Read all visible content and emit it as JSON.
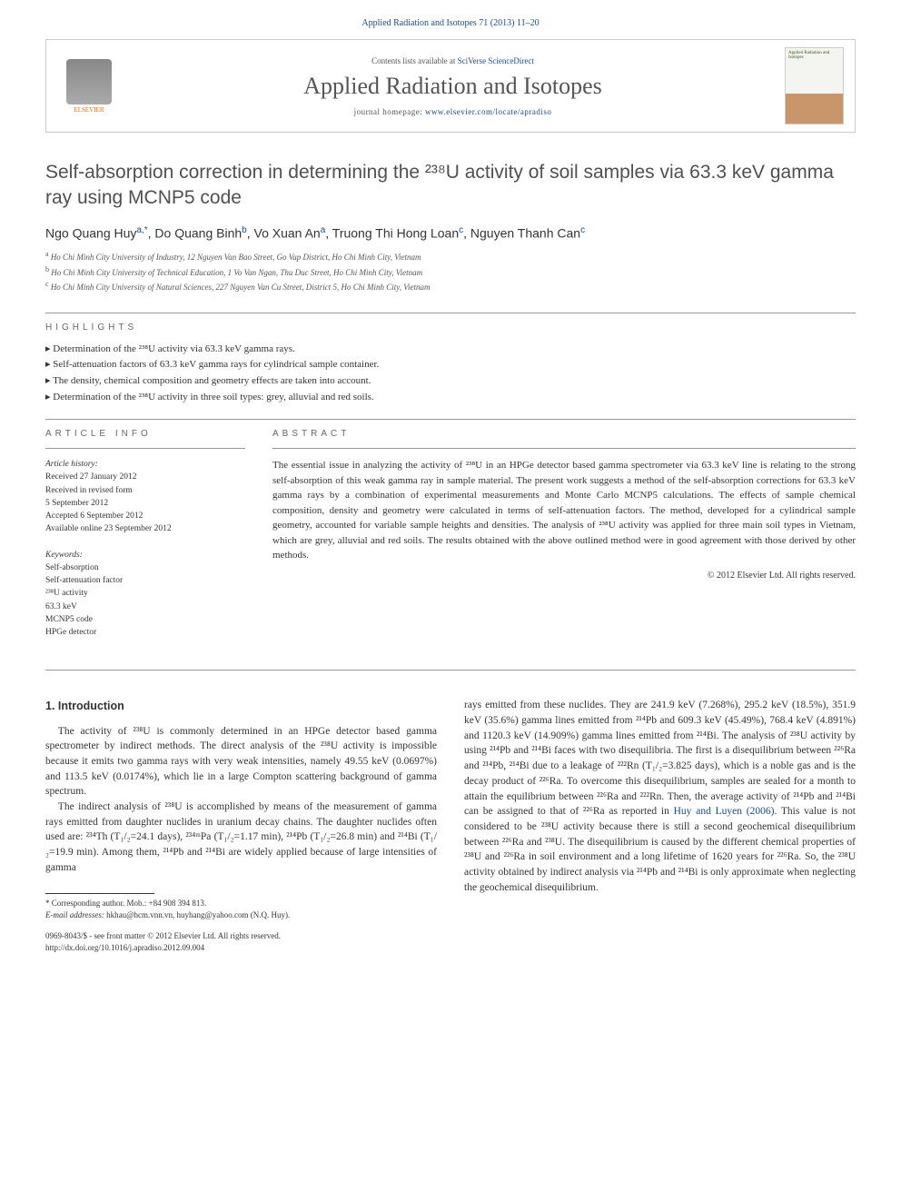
{
  "journal_ref": "Applied Radiation and Isotopes 71 (2013) 11–20",
  "header": {
    "contents_prefix": "Contents lists available at ",
    "contents_link": "SciVerse ScienceDirect",
    "journal_name": "Applied Radiation and Isotopes",
    "homepage_prefix": "journal homepage: ",
    "homepage_url": "www.elsevier.com/locate/apradiso",
    "publisher_name": "ELSEVIER",
    "cover_label": "Applied Radiation and Isotopes"
  },
  "title": "Self-absorption correction in determining the ²³⁸U activity of soil samples via 63.3 keV gamma ray using MCNP5 code",
  "authors_html": "Ngo Quang Huy|a,*|, Do Quang Binh|b|, Vo Xuan An|a|, Truong Thi Hong Loan|c|, Nguyen Thanh Can|c|",
  "affiliations": [
    {
      "key": "a",
      "text": "Ho Chi Minh City University of Industry, 12 Nguyen Van Bao Street, Go Vap District, Ho Chi Minh City, Vietnam"
    },
    {
      "key": "b",
      "text": "Ho Chi Minh City University of Technical Education, 1 Vo Van Ngan, Thu Duc Street, Ho Chi Minh City, Vietnam"
    },
    {
      "key": "c",
      "text": "Ho Chi Minh City University of Natural Sciences, 227 Nguyen Van Cu Street, District 5, Ho Chi Minh City, Vietnam"
    }
  ],
  "highlights_label": "HIGHLIGHTS",
  "highlights": [
    "Determination of the ²³⁸U activity via 63.3 keV gamma rays.",
    "Self-attenuation factors of 63.3 keV gamma rays for cylindrical sample container.",
    "The density, chemical composition and geometry effects are taken into account.",
    "Determination of the ²³⁸U activity in three soil types: grey, alluvial and red soils."
  ],
  "article_info_label": "ARTICLE INFO",
  "abstract_label": "ABSTRACT",
  "history": {
    "header": "Article history:",
    "lines": [
      "Received 27 January 2012",
      "Received in revised form",
      "5 September 2012",
      "Accepted 6 September 2012",
      "Available online 23 September 2012"
    ]
  },
  "keywords": {
    "header": "Keywords:",
    "items": [
      "Self-absorption",
      "Self-attenuation factor",
      "²³⁸U activity",
      "63.3 keV",
      "MCNP5 code",
      "HPGe detector"
    ]
  },
  "abstract": "The essential issue in analyzing the activity of ²³⁸U in an HPGe detector based gamma spectrometer via 63.3 keV line is relating to the strong self-absorption of this weak gamma ray in sample material. The present work suggests a method of the self-absorption corrections for 63.3 keV gamma rays by a combination of experimental measurements and Monte Carlo MCNP5 calculations. The effects of sample chemical composition, density and geometry were calculated in terms of self-attenuation factors. The method, developed for a cylindrical sample geometry, accounted for variable sample heights and densities. The analysis of ²³⁸U activity was applied for three main soil types in Vietnam, which are grey, alluvial and red soils. The results obtained with the above outlined method were in good agreement with those derived by other methods.",
  "copyright": "© 2012 Elsevier Ltd. All rights reserved.",
  "intro_heading": "1.  Introduction",
  "intro_p1": "The activity of ²³⁸U is commonly determined in an HPGe detector based gamma spectrometer by indirect methods. The direct analysis of the ²³⁸U activity is impossible because it emits two gamma rays with very weak intensities, namely 49.55 keV (0.0697%) and 113.5 keV (0.0174%), which lie in a large Compton scattering background of gamma spectrum.",
  "intro_p2": "The indirect analysis of ²³⁸U is accomplished by means of the measurement of gamma rays emitted from daughter nuclides in uranium decay chains. The daughter nuclides often used are: ²³⁴Th (T₁/₂=24.1 days), ²³⁴ᵐPa (T₁/₂=1.17 min), ²¹⁴Pb (T₁/₂=26.8 min) and ²¹⁴Bi (T₁/₂=19.9 min). Among them, ²¹⁴Pb and ²¹⁴Bi are widely applied because of large intensities of gamma",
  "intro_p3a": "rays emitted from these nuclides. They are 241.9 keV (7.268%), 295.2 keV (18.5%), 351.9 keV (35.6%) gamma lines emitted from ²¹⁴Pb and 609.3 keV (45.49%), 768.4 keV (4.891%) and 1120.3 keV (14.909%) gamma lines emitted from ²¹⁴Bi. The analysis of ²³⁸U activity by using ²¹⁴Pb and ²¹⁴Bi faces with two disequilibria. The first is a disequilibrium between ²²⁶Ra and ²¹⁴Pb, ²¹⁴Bi due to a leakage of ²²²Rn (T₁/₂=3.825 days), which is a noble gas and is the decay product of ²²⁶Ra. To overcome this disequilibrium, samples are sealed for a month to attain the equilibrium between ²²⁶Ra and ²²²Rn. Then, the average activity of ²¹⁴Pb and ²¹⁴Bi can be assigned to that of ²²⁶Ra as reported in ",
  "intro_ref": "Huy and Luyen (2006)",
  "intro_p3b": ". This value is not considered to be ²³⁸U activity because there is still a second geochemical disequilibrium between ²²⁶Ra and ²³⁸U. The disequilibrium is caused by the different chemical properties of ²³⁸U and ²²⁶Ra in soil environment and a long lifetime of 1620 years for ²²⁶Ra. So, the ²³⁸U activity obtained by indirect analysis via ²¹⁴Pb and ²¹⁴Bi is only approximate when neglecting the geochemical disequilibrium.",
  "corr_label": "* Corresponding author. Mob.: +84 908 394 813.",
  "email_label": "E-mail addresses:",
  "emails": "hkhau@hcm.vnn.vn, huyhang@yahoo.com (N.Q. Huy).",
  "footer_line1": "0969-8043/$ - see front matter © 2012 Elsevier Ltd. All rights reserved.",
  "footer_line2": "http://dx.doi.org/10.1016/j.apradiso.2012.09.004",
  "colors": {
    "link": "#1a4b8c",
    "text": "#333333",
    "title_grey": "#505050",
    "orange": "#ff6600"
  }
}
